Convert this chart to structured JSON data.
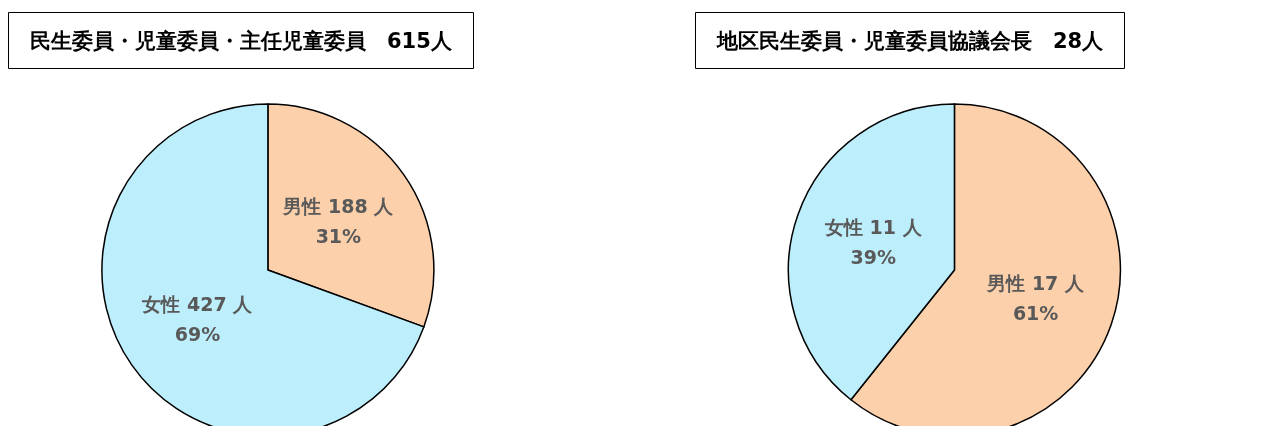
{
  "chart_data": [
    {
      "type": "pie",
      "title": "民生委員・児童委員・主任児童委員　615人",
      "categories": [
        "男性",
        "女性"
      ],
      "values": [
        188,
        427
      ],
      "colors": [
        "#fcd0ab",
        "#bdeefc"
      ],
      "value_labels": [
        "188 人\n31%",
        "427 人\n69%"
      ]
    },
    {
      "type": "pie",
      "title": "地区民生委員・児童委員協議会長　28人",
      "categories": [
        "男性",
        "女性"
      ],
      "values": [
        17,
        11
      ],
      "colors": [
        "#fcd0ab",
        "#bdeefc"
      ],
      "value_labels": [
        "17 人\n61%",
        "11 人\n39%"
      ]
    }
  ]
}
